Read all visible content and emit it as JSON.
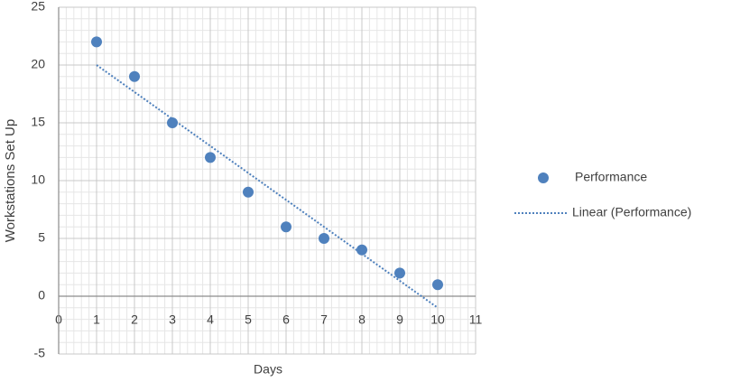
{
  "chart_data": {
    "type": "scatter",
    "x_label": "Days",
    "y_label": "Workstations Set Up",
    "xlim": [
      0,
      11
    ],
    "ylim": [
      -5,
      25
    ],
    "xticks": [
      0,
      1,
      2,
      3,
      4,
      5,
      6,
      7,
      8,
      9,
      10,
      11
    ],
    "yticks": [
      -5,
      0,
      5,
      10,
      15,
      20,
      25
    ],
    "grid": true,
    "minor_grid": true,
    "legend": "right",
    "series": [
      {
        "name": "Performance",
        "type": "scatter",
        "color": "#4f81bd",
        "x": [
          1,
          2,
          3,
          4,
          5,
          6,
          7,
          8,
          9,
          10
        ],
        "values": [
          22,
          19,
          15,
          12,
          9,
          6,
          5,
          4,
          2,
          1
        ]
      },
      {
        "name": "Linear (Performance)",
        "type": "line",
        "dash": "dotted",
        "color": "#4f81bd",
        "x": [
          1,
          10
        ],
        "values": [
          20,
          -1
        ]
      }
    ]
  }
}
